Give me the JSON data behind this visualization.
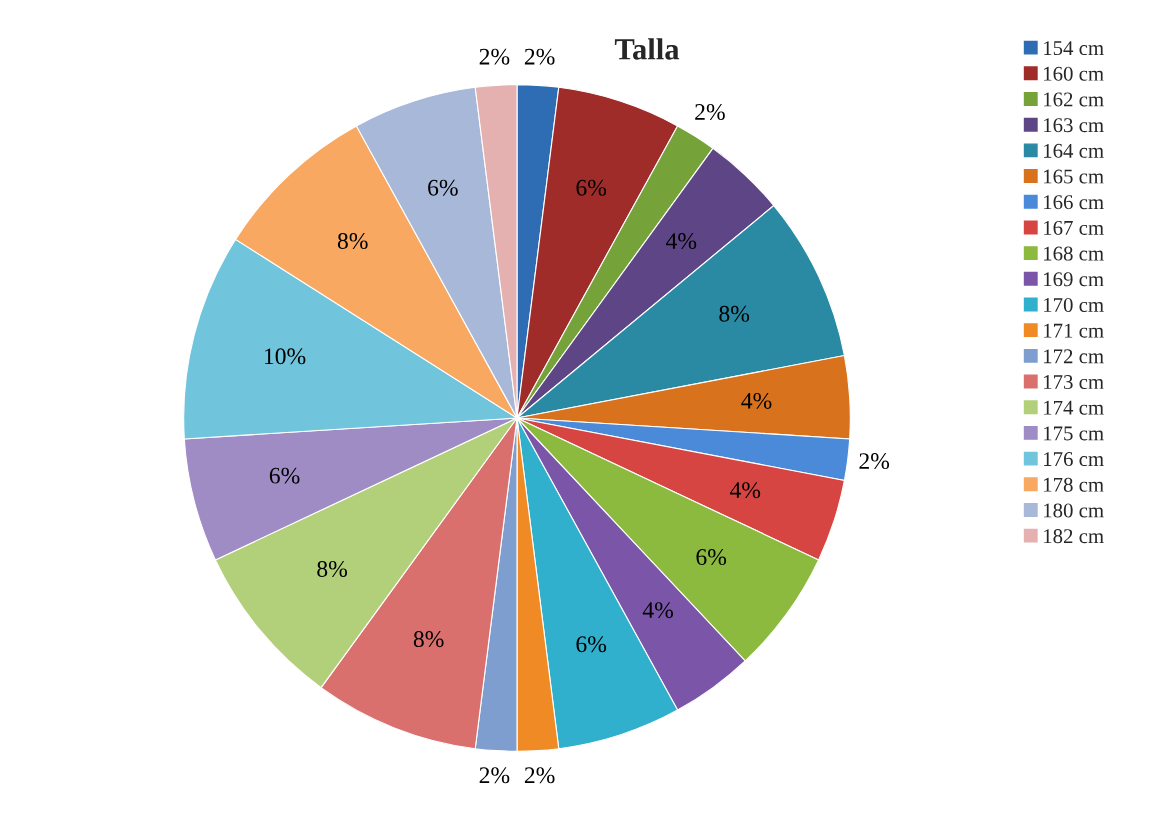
{
  "chart_data": {
    "type": "pie",
    "title": "Talla",
    "categories": [
      "154 cm",
      "160 cm",
      "162 cm",
      "163 cm",
      "164 cm",
      "165 cm",
      "166 cm",
      "167 cm",
      "168 cm",
      "169 cm",
      "170 cm",
      "171 cm",
      "172 cm",
      "173 cm",
      "174 cm",
      "175 cm",
      "176 cm",
      "178 cm",
      "180 cm",
      "182 cm"
    ],
    "values": [
      2,
      6,
      2,
      4,
      8,
      4,
      2,
      4,
      6,
      4,
      6,
      2,
      2,
      8,
      8,
      6,
      10,
      8,
      6,
      2
    ],
    "colors": [
      "#2e6cb4",
      "#a02c2a",
      "#76a23a",
      "#5e4585",
      "#2a8aa4",
      "#d9721c",
      "#4a8ad8",
      "#d64541",
      "#8cba3f",
      "#7a55a8",
      "#30b0cc",
      "#f08a24",
      "#7f9ed0",
      "#d9706d",
      "#b2d07a",
      "#a08cc4",
      "#70c4dc",
      "#f8a860",
      "#a8b8d8",
      "#e5b0b0"
    ],
    "value_labels": [
      "2%",
      "6%",
      "2%",
      "4%",
      "8%",
      "4%",
      "2%",
      "4%",
      "6%",
      "4%",
      "6%",
      "2%",
      "2%",
      "8%",
      "8%",
      "6%",
      "10%",
      "8%",
      "6%",
      "2%"
    ],
    "legend": "right"
  }
}
